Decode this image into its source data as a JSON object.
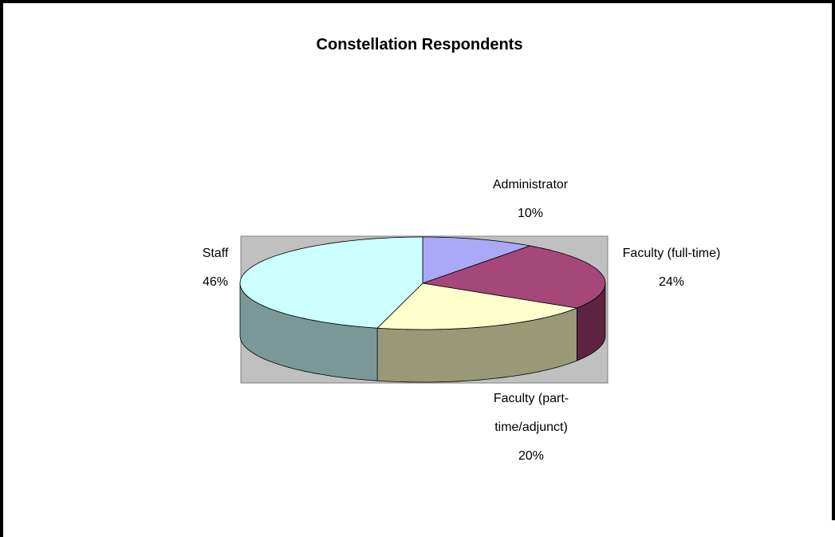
{
  "chart_data": {
    "type": "pie",
    "title": "Constellation Respondents",
    "categories": [
      "Administrator",
      "Faculty (full-time)",
      "Faculty (part-time/adjunct)",
      "Staff"
    ],
    "values": [
      10,
      24,
      20,
      46
    ],
    "value_labels": [
      "10%",
      "24%",
      "20%",
      "46%"
    ],
    "colors": [
      "#a9a9f8",
      "#a6477a",
      "#ffffcc",
      "#ccffff"
    ],
    "side_colors": [
      "#6a6aa0",
      "#5c2440",
      "#999977",
      "#7a9898"
    ],
    "three_d": true
  }
}
